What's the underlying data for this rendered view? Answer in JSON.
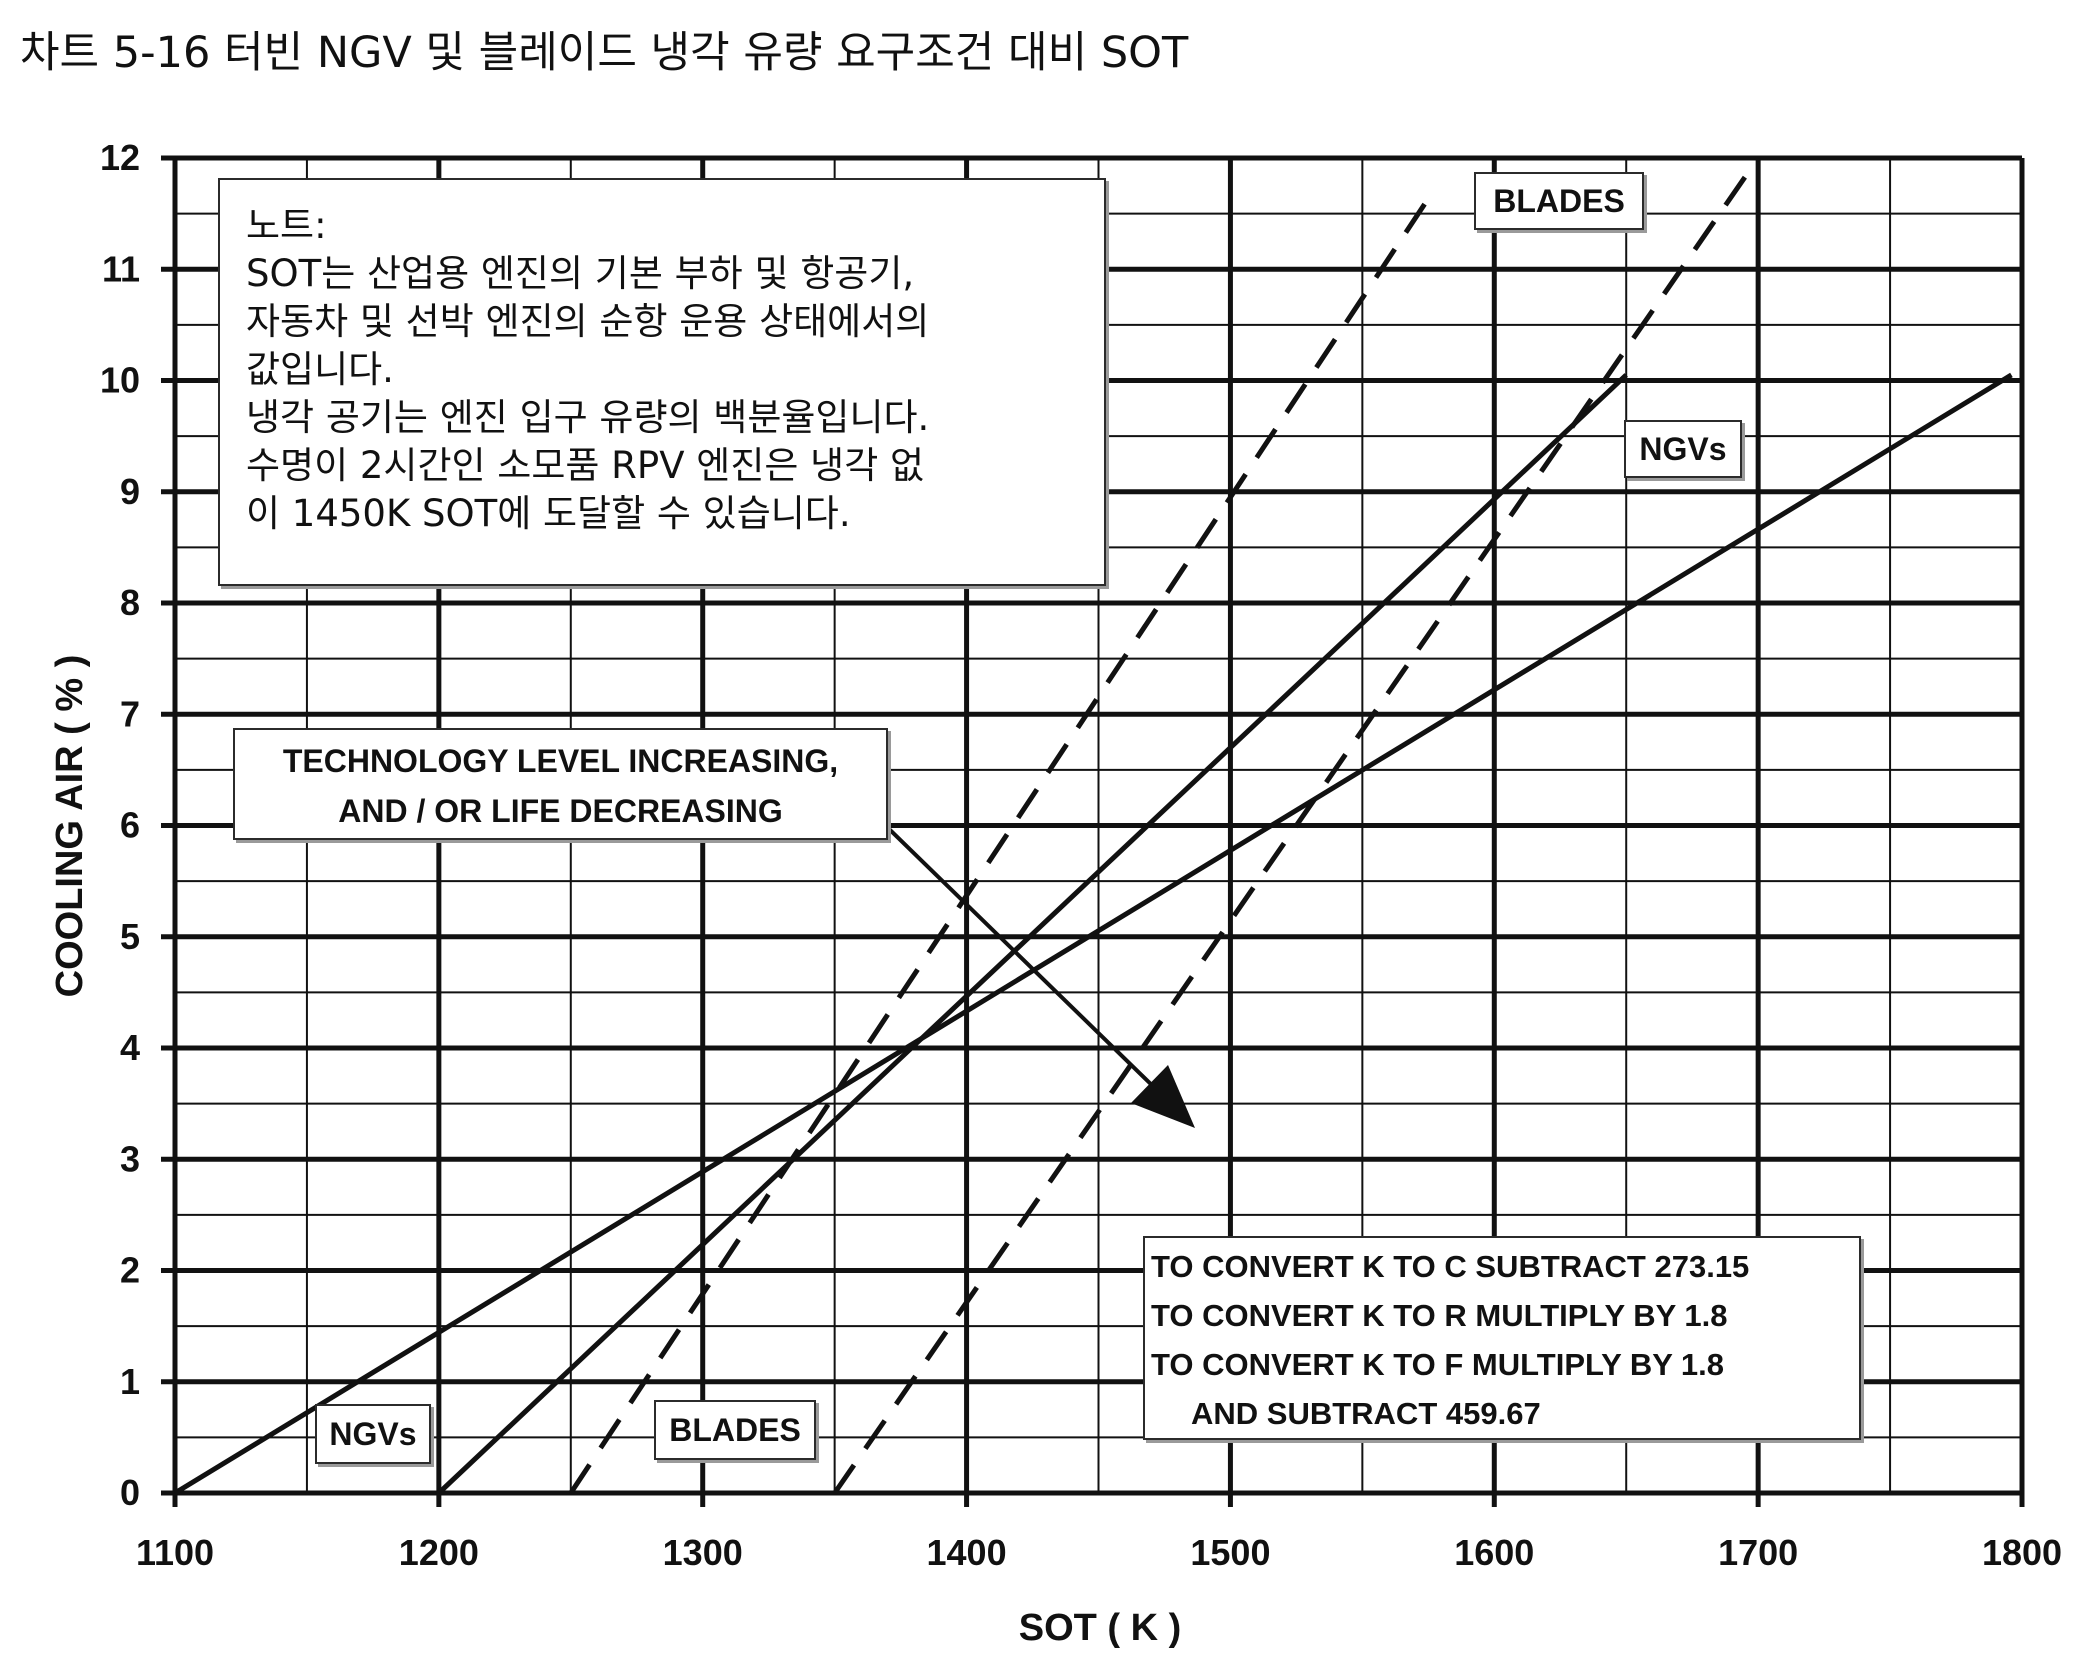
{
  "figure_title": "차트 5-16 터빈 NGV 및 블레이드 냉각 유량 요구조건 대비 SOT",
  "chart_data": {
    "type": "line",
    "xlabel": "SOT ( K )",
    "ylabel": "COOLING AIR ( % )",
    "xlim": [
      1100,
      1800
    ],
    "ylim": [
      0,
      12
    ],
    "x_ticks": [
      "1100",
      "1200",
      "1300",
      "1400",
      "1500",
      "1600",
      "1700",
      "1800"
    ],
    "y_ticks": [
      "0",
      "1",
      "2",
      "3",
      "4",
      "5",
      "6",
      "7",
      "8",
      "9",
      "10",
      "11",
      "12"
    ],
    "grid": true,
    "series": [
      {
        "group": "NGVs",
        "style": "solid",
        "x": [
          1100,
          1796
        ],
        "y": [
          0,
          10.05
        ]
      },
      {
        "group": "NGVs",
        "style": "solid",
        "x": [
          1200,
          1650
        ],
        "y": [
          0,
          10.05
        ]
      },
      {
        "group": "BLADES",
        "style": "dashed",
        "x": [
          1250,
          1574
        ],
        "y": [
          0,
          11.6
        ]
      },
      {
        "group": "BLADES",
        "style": "dashed",
        "x": [
          1350,
          1700
        ],
        "y": [
          0,
          12.0
        ]
      }
    ],
    "labels": {
      "ngvs_upper": "NGVs",
      "ngvs_lower": "NGVs",
      "blades_upper": "BLADES",
      "blades_lower": "BLADES"
    },
    "arrow_label": [
      "TECHNOLOGY LEVEL INCREASING,",
      "AND / OR LIFE DECREASING"
    ],
    "conversion_note": [
      "TO CONVERT K TO C SUBTRACT 273.15",
      "TO CONVERT K TO R MULTIPLY BY 1.8",
      "TO CONVERT K TO F MULTIPLY BY 1.8",
      "AND SUBTRACT 459.67"
    ],
    "note": [
      "노트:",
      "SOT는 산업용 엔진의 기본 부하 및 항공기,",
      "자동차 및 선박 엔진의 순항 운용 상태에서의",
      "값입니다.",
      "냉각 공기는 엔진 입구 유량의 백분율입니다.",
      "수명이 2시간인 소모품 RPV 엔진은 냉각 없",
      "이 1450K SOT에 도달할 수 있습니다."
    ]
  }
}
